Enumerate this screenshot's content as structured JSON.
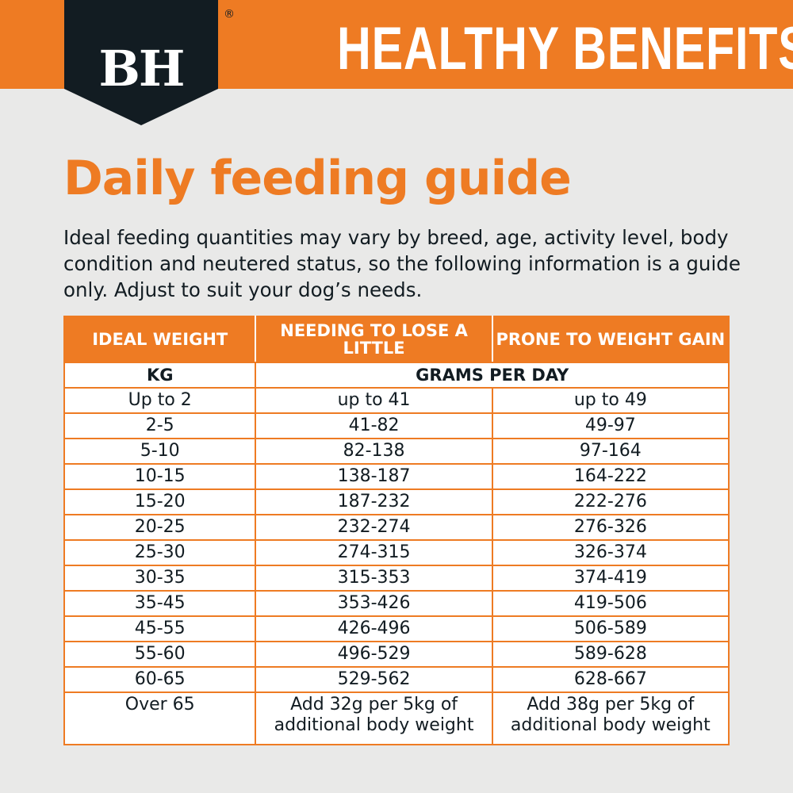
{
  "brand": {
    "logo": "BH",
    "registered": "®",
    "title": "HEALTHY BENEFITS",
    "trademark": "™",
    "colors": {
      "accent": "#EE7B23",
      "dark": "#121C22"
    }
  },
  "heading": "Daily feeding guide",
  "intro": "Ideal feeding quantities may vary by breed, age, activity level, body condition and neutered status, so the following information is a guide only. Adjust to suit your dog’s needs.",
  "table": {
    "headers": [
      "IDEAL WEIGHT",
      "NEEDING TO LOSE A LITTLE",
      "PRONE TO WEIGHT GAIN"
    ],
    "units": {
      "weight": "KG",
      "grams": "GRAMS PER DAY"
    },
    "rows": [
      [
        "Up to 2",
        "up to 41",
        "up to 49"
      ],
      [
        "2-5",
        "41-82",
        "49-97"
      ],
      [
        "5-10",
        "82-138",
        "97-164"
      ],
      [
        "10-15",
        "138-187",
        "164-222"
      ],
      [
        "15-20",
        "187-232",
        "222-276"
      ],
      [
        "20-25",
        "232-274",
        "276-326"
      ],
      [
        "25-30",
        "274-315",
        "326-374"
      ],
      [
        "30-35",
        "315-353",
        "374-419"
      ],
      [
        "35-45",
        "353-426",
        "419-506"
      ],
      [
        "45-55",
        "426-496",
        "506-589"
      ],
      [
        "55-60",
        "496-529",
        "589-628"
      ],
      [
        "60-65",
        "529-562",
        "628-667"
      ]
    ],
    "last_row": [
      "Over 65",
      "Add 32g per 5kg of additional body weight",
      "Add 38g per 5kg of additional body weight"
    ]
  }
}
